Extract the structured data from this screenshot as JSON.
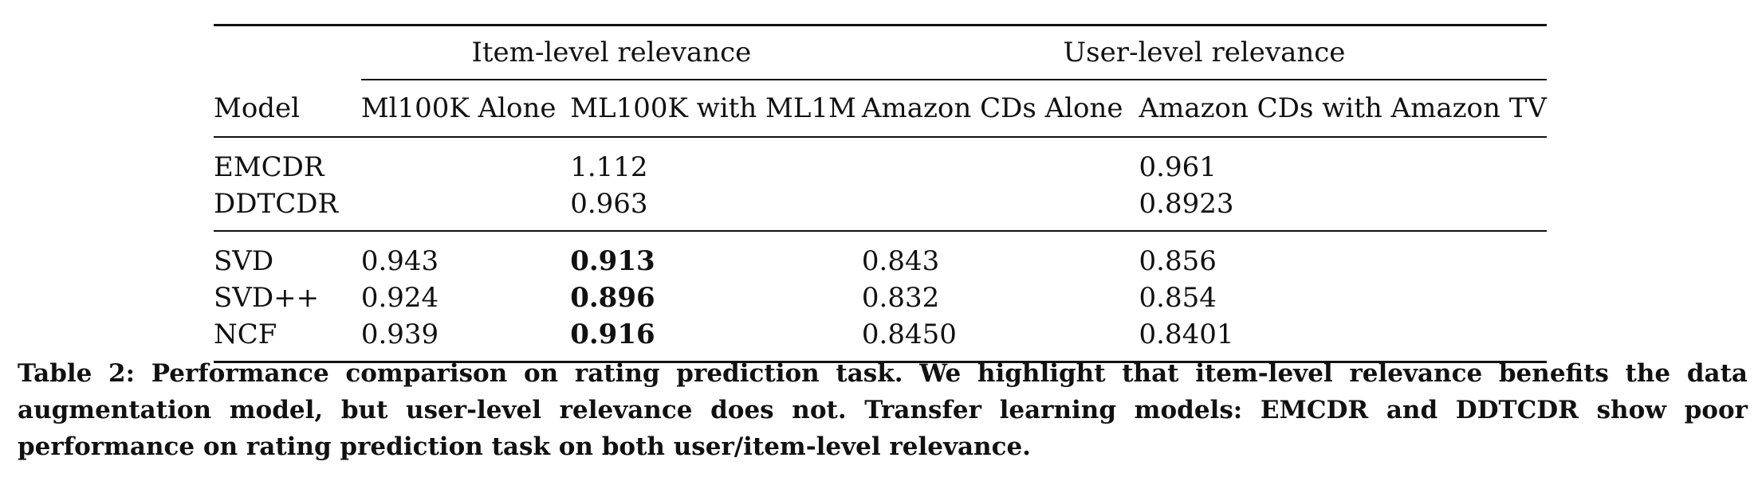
{
  "table": {
    "group_headers": {
      "item_level": "Item-level relevance",
      "user_level": "User-level relevance"
    },
    "columns": [
      "Model",
      "Ml100K Alone",
      "ML100K with ML1M",
      "Amazon CDs Alone",
      "Amazon CDs with Amazon TV"
    ],
    "sections": [
      [
        {
          "model": "EMCDR",
          "ml100k_alone": "",
          "ml100k_with_ml1m": "1.112",
          "cds_alone": "",
          "cds_with_tv": "0.961"
        },
        {
          "model": "DDTCDR",
          "ml100k_alone": "",
          "ml100k_with_ml1m": "0.963",
          "cds_alone": "",
          "cds_with_tv": "0.8923"
        }
      ],
      [
        {
          "model": "SVD",
          "ml100k_alone": "0.943",
          "ml100k_with_ml1m": "0.913",
          "cds_alone": "0.843",
          "cds_with_tv": "0.856"
        },
        {
          "model": "SVD++",
          "ml100k_alone": "0.924",
          "ml100k_with_ml1m": "0.896",
          "cds_alone": "0.832",
          "cds_with_tv": "0.854"
        },
        {
          "model": "NCF",
          "ml100k_alone": "0.939",
          "ml100k_with_ml1m": "0.916",
          "cds_alone": "0.8450",
          "cds_with_tv": "0.8401"
        }
      ]
    ]
  },
  "caption": "Table 2: Performance comparison on rating prediction task. We highlight that item-level relevance benefits the data augmentation model, but user-level relevance does not. Transfer learning models: EMCDR and DDTCDR show poor performance on rating prediction task on both user/item-level relevance."
}
